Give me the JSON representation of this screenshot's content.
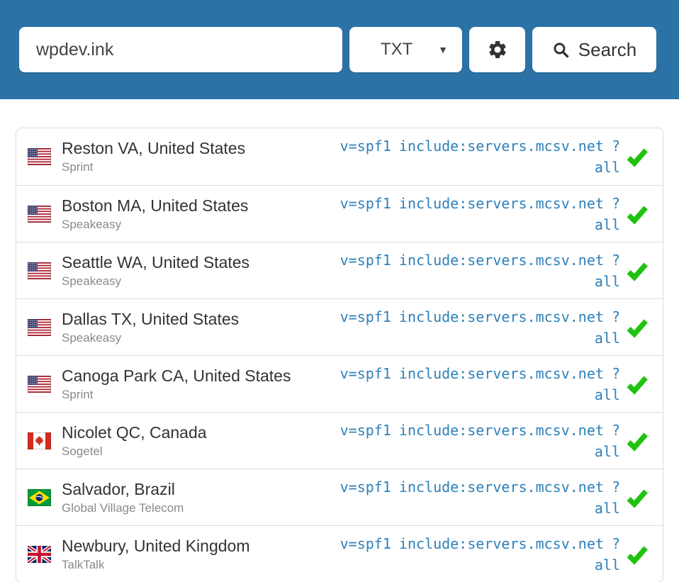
{
  "colors": {
    "header_bg": "#2b73a6",
    "record_text": "#2e80b9",
    "check_green": "#1fc30f",
    "location_text": "#333333",
    "provider_text": "#8a8a8a",
    "border": "#dcdcdc"
  },
  "search_bar": {
    "domain_value": "wpdev.ink",
    "record_type_selected": "TXT",
    "search_label": "Search",
    "icons": {
      "chevron_down": "▼",
      "settings": "gear-icon",
      "search": "magnifier-icon"
    }
  },
  "results": [
    {
      "flag": "us",
      "flag_icon": "us-flag-icon",
      "location": "Reston VA, United States",
      "provider": "Sprint",
      "record": "v=spf1 include:servers.mcsv.net ?all",
      "status": "resolved",
      "status_icon": "check-icon"
    },
    {
      "flag": "us",
      "flag_icon": "us-flag-icon",
      "location": "Boston MA, United States",
      "provider": "Speakeasy",
      "record": "v=spf1 include:servers.mcsv.net ?all",
      "status": "resolved",
      "status_icon": "check-icon"
    },
    {
      "flag": "us",
      "flag_icon": "us-flag-icon",
      "location": "Seattle WA, United States",
      "provider": "Speakeasy",
      "record": "v=spf1 include:servers.mcsv.net ?all",
      "status": "resolved",
      "status_icon": "check-icon"
    },
    {
      "flag": "us",
      "flag_icon": "us-flag-icon",
      "location": "Dallas TX, United States",
      "provider": "Speakeasy",
      "record": "v=spf1 include:servers.mcsv.net ?all",
      "status": "resolved",
      "status_icon": "check-icon"
    },
    {
      "flag": "us",
      "flag_icon": "us-flag-icon",
      "location": "Canoga Park CA, United States",
      "provider": "Sprint",
      "record": "v=spf1 include:servers.mcsv.net ?all",
      "status": "resolved",
      "status_icon": "check-icon"
    },
    {
      "flag": "ca",
      "flag_icon": "ca-flag-icon",
      "location": "Nicolet QC, Canada",
      "provider": "Sogetel",
      "record": "v=spf1 include:servers.mcsv.net ?all",
      "status": "resolved",
      "status_icon": "check-icon"
    },
    {
      "flag": "br",
      "flag_icon": "br-flag-icon",
      "location": "Salvador, Brazil",
      "provider": "Global Village Telecom",
      "record": "v=spf1 include:servers.mcsv.net ?all",
      "status": "resolved",
      "status_icon": "check-icon"
    },
    {
      "flag": "gb",
      "flag_icon": "gb-flag-icon",
      "location": "Newbury, United Kingdom",
      "provider": "TalkTalk",
      "record": "v=spf1 include:servers.mcsv.net ?all",
      "status": "resolved",
      "status_icon": "check-icon"
    }
  ]
}
